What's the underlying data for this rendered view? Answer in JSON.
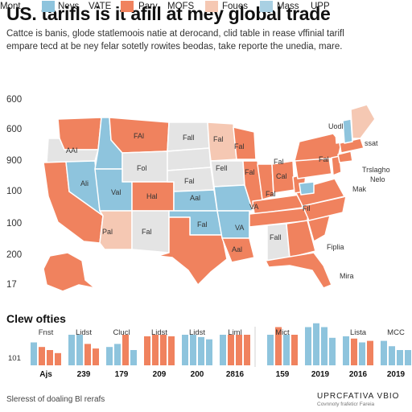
{
  "header": {
    "title": "US. tarifls is it afill at mey global trade",
    "subtitle_1": "Cattce is banis, glode statlemoois natie at derocand, clid table in rease vffinial tarifl",
    "subtitle_2": "empare tecd at be ney felar sotetly rowites beodas, take reporte the unedia, mare."
  },
  "legend": [
    {
      "label": "Mont",
      "color": ""
    },
    {
      "label": "Nevs",
      "color": "#8ec4dd"
    },
    {
      "label": "VATE",
      "color": ""
    },
    {
      "label": "Pary",
      "color": "#f0825e"
    },
    {
      "label": "MOFS",
      "color": ""
    },
    {
      "label": "Foues",
      "color": "#f5c8b3"
    },
    {
      "label": "Mass",
      "color": "#a9d0e3"
    },
    {
      "label": "UPP",
      "color": ""
    }
  ],
  "y_axis_labels": [
    "600",
    "600",
    "900",
    "100",
    "100",
    "200",
    "17"
  ],
  "map": {
    "colors": {
      "orange": "#f0825e",
      "blue": "#8ec4dd",
      "grey": "#e4e4e4",
      "peach": "#f5c8b3",
      "white": "#ffffff",
      "outline": "#ffffff"
    },
    "labels": [
      "Uodl",
      "ssat",
      "Fall",
      "Fol",
      "FAl",
      "AAI",
      "Fal",
      "Fal",
      "Ali",
      "Pal",
      "Val",
      "Fal",
      "Hal",
      "Aal",
      "Fal",
      "VA",
      "Fell",
      "Fal",
      "Fal",
      "VA",
      "Aal",
      "Fall",
      "Fal",
      "Cal",
      "Fil",
      "Fal",
      "Fal",
      "Trslagho",
      "Nelo",
      "Mak",
      "Fiplia",
      "Mira"
    ]
  },
  "section_title": "Clew ofties",
  "chart_data": {
    "type": "bar",
    "title": "Clew ofties",
    "y_tick_label": "101",
    "groups": [
      {
        "name": "Fnst",
        "year_label": "Ajs",
        "values": [
          3.0,
          2.4,
          2.0,
          1.6
        ],
        "colors": [
          "#8ec4dd",
          "#f0825e",
          "#f0825e",
          "#f0825e"
        ]
      },
      {
        "name": "Lidst",
        "year_label": "239",
        "values": [
          4.0,
          4.0,
          2.8,
          2.2
        ],
        "colors": [
          "#8ec4dd",
          "#8ec4dd",
          "#f0825e",
          "#f0825e"
        ]
      },
      {
        "name": "Clucl",
        "year_label": "179",
        "values": [
          2.4,
          2.8,
          4.0,
          2.0
        ],
        "colors": [
          "#8ec4dd",
          "#8ec4dd",
          "#f0825e",
          "#8ec4dd"
        ]
      },
      {
        "name": "Lidst",
        "year_label": "209",
        "values": [
          3.8,
          4.0,
          4.0,
          3.8
        ],
        "colors": [
          "#f0825e",
          "#f0825e",
          "#f0825e",
          "#f0825e"
        ]
      },
      {
        "name": "Lidst",
        "year_label": "200",
        "values": [
          4.0,
          4.0,
          3.7,
          3.4
        ],
        "colors": [
          "#8ec4dd",
          "#8ec4dd",
          "#8ec4dd",
          "#8ec4dd"
        ]
      },
      {
        "name": "Liml",
        "year_label": "2816",
        "values": [
          4.0,
          4.0,
          4.0,
          4.0
        ],
        "colors": [
          "#8ec4dd",
          "#f0825e",
          "#f0825e",
          "#f0825e"
        ]
      },
      {
        "name": "Mict",
        "year_label": "159",
        "values": [
          4.0,
          5.0,
          4.0,
          4.0
        ],
        "colors": [
          "#8ec4dd",
          "#f0825e",
          "#8ec4dd",
          "#f0825e"
        ]
      },
      {
        "name": "",
        "year_label": "2019",
        "values": [
          5.0,
          5.5,
          5.0,
          3.6
        ],
        "colors": [
          "#8ec4dd",
          "#8ec4dd",
          "#8ec4dd",
          "#8ec4dd"
        ]
      },
      {
        "name": "Lista",
        "year_label": "2016",
        "values": [
          3.8,
          3.5,
          3.0,
          3.2
        ],
        "colors": [
          "#8ec4dd",
          "#f0825e",
          "#8ec4dd",
          "#f0825e"
        ]
      },
      {
        "name": "MCC",
        "year_label": "2019",
        "values": [
          3.2,
          2.5,
          2.0,
          2.0
        ],
        "colors": [
          "#8ec4dd",
          "#8ec4dd",
          "#8ec4dd",
          "#8ec4dd"
        ]
      }
    ]
  },
  "footer": {
    "left": "Sleresst of doaling Bl rerafs",
    "right": "UPRCFATIVA VBIO",
    "right_sub": "Covnnoty frafeticr Fareia"
  }
}
